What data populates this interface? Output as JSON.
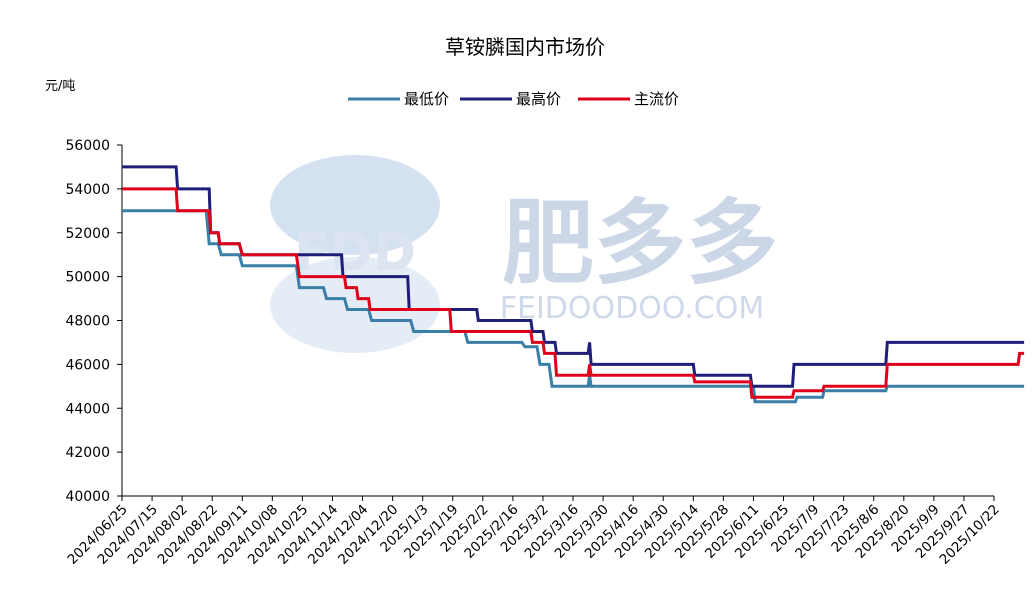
{
  "chart_data": {
    "type": "line",
    "title": "草铵膦国内市场价",
    "ylabel": "元/吨",
    "xlabel": "",
    "ylim": [
      40000,
      56000
    ],
    "yticks": [
      40000,
      42000,
      44000,
      46000,
      48000,
      50000,
      52000,
      54000,
      56000
    ],
    "grid": false,
    "legend_position": "top",
    "x_tick_labels": [
      "2024/06/25",
      "2024/07/15",
      "2024/08/02",
      "2024/08/22",
      "2024/09/11",
      "2024/10/08",
      "2024/10/25",
      "2024/11/14",
      "2024/12/04",
      "2024/12/20",
      "2025/1/3",
      "2025/1/19",
      "2025/2/2",
      "2025/2/16",
      "2025/3/2",
      "2025/3/16",
      "2025/3/30",
      "2025/4/16",
      "2025/4/30",
      "2025/5/14",
      "2025/5/28",
      "2025/6/11",
      "2025/6/25",
      "2025/7/9",
      "2025/7/23",
      "2025/8/6",
      "2025/8/20",
      "2025/9/9",
      "2025/9/27",
      "2025/10/22"
    ],
    "series": [
      {
        "name": "最低价",
        "color": "#3a7fa8",
        "points": [
          [
            0,
            53000
          ],
          [
            2.8,
            53000
          ],
          [
            2.8,
            53000
          ],
          [
            2.9,
            51500
          ],
          [
            3.2,
            51500
          ],
          [
            3.3,
            51000
          ],
          [
            3.9,
            51000
          ],
          [
            4.0,
            50500
          ],
          [
            5.8,
            50500
          ],
          [
            5.9,
            49500
          ],
          [
            6.7,
            49500
          ],
          [
            6.8,
            49000
          ],
          [
            7.4,
            49000
          ],
          [
            7.5,
            48500
          ],
          [
            8.2,
            48500
          ],
          [
            8.3,
            48000
          ],
          [
            9.6,
            48000
          ],
          [
            9.7,
            47500
          ],
          [
            11.4,
            47500
          ],
          [
            11.5,
            47000
          ],
          [
            13.3,
            47000
          ],
          [
            13.4,
            46800
          ],
          [
            13.8,
            46800
          ],
          [
            13.9,
            46000
          ],
          [
            14.2,
            46000
          ],
          [
            14.3,
            45000
          ],
          [
            15.5,
            45000
          ],
          [
            15.55,
            45500
          ],
          [
            15.6,
            45000
          ],
          [
            21.0,
            45000
          ],
          [
            21.05,
            44300
          ],
          [
            22.4,
            44300
          ],
          [
            22.45,
            44500
          ],
          [
            23.3,
            44500
          ],
          [
            23.35,
            44800
          ],
          [
            25.4,
            44800
          ],
          [
            25.45,
            45000
          ],
          [
            30,
            45000
          ]
        ]
      },
      {
        "name": "最高价",
        "color": "#1f1f7a",
        "points": [
          [
            0,
            55000
          ],
          [
            1.8,
            55000
          ],
          [
            1.85,
            54000
          ],
          [
            2.9,
            54000
          ],
          [
            2.95,
            52000
          ],
          [
            3.2,
            52000
          ],
          [
            3.25,
            51500
          ],
          [
            3.9,
            51500
          ],
          [
            4.0,
            51000
          ],
          [
            7.3,
            51000
          ],
          [
            7.35,
            50000
          ],
          [
            9.5,
            50000
          ],
          [
            9.55,
            48500
          ],
          [
            11.8,
            48500
          ],
          [
            11.85,
            48000
          ],
          [
            13.6,
            48000
          ],
          [
            13.65,
            47500
          ],
          [
            14.0,
            47500
          ],
          [
            14.05,
            47000
          ],
          [
            14.4,
            47000
          ],
          [
            14.45,
            46500
          ],
          [
            15.5,
            46500
          ],
          [
            15.55,
            47000
          ],
          [
            15.6,
            46000
          ],
          [
            19.0,
            46000
          ],
          [
            19.05,
            45500
          ],
          [
            20.9,
            45500
          ],
          [
            20.95,
            45000
          ],
          [
            22.3,
            45000
          ],
          [
            22.35,
            46000
          ],
          [
            25.4,
            46000
          ],
          [
            25.45,
            47000
          ],
          [
            30,
            47000
          ]
        ]
      },
      {
        "name": "主流价",
        "color": "#e0001b",
        "points": [
          [
            0,
            54000
          ],
          [
            1.8,
            54000
          ],
          [
            1.85,
            53000
          ],
          [
            2.9,
            53000
          ],
          [
            2.95,
            52000
          ],
          [
            3.2,
            52000
          ],
          [
            3.25,
            51500
          ],
          [
            3.9,
            51500
          ],
          [
            4.0,
            51000
          ],
          [
            5.8,
            51000
          ],
          [
            5.9,
            50000
          ],
          [
            7.4,
            50000
          ],
          [
            7.45,
            49500
          ],
          [
            7.8,
            49500
          ],
          [
            7.85,
            49000
          ],
          [
            8.2,
            49000
          ],
          [
            8.25,
            48500
          ],
          [
            10.9,
            48500
          ],
          [
            10.95,
            47500
          ],
          [
            13.6,
            47500
          ],
          [
            13.65,
            47000
          ],
          [
            14.0,
            47000
          ],
          [
            14.05,
            46500
          ],
          [
            14.4,
            46500
          ],
          [
            14.45,
            45500
          ],
          [
            15.5,
            45500
          ],
          [
            15.55,
            46000
          ],
          [
            15.6,
            45500
          ],
          [
            19.0,
            45500
          ],
          [
            19.05,
            45200
          ],
          [
            20.9,
            45200
          ],
          [
            20.95,
            44500
          ],
          [
            22.3,
            44500
          ],
          [
            22.35,
            44800
          ],
          [
            23.3,
            44800
          ],
          [
            23.35,
            45000
          ],
          [
            25.4,
            45000
          ],
          [
            25.45,
            46000
          ],
          [
            29.8,
            46000
          ],
          [
            29.85,
            46500
          ],
          [
            30,
            46500
          ]
        ]
      }
    ]
  },
  "watermark": {
    "logo_text": "FDD",
    "brand_cn": "肥多多",
    "brand_en": "FEIDOODOO.COM"
  }
}
